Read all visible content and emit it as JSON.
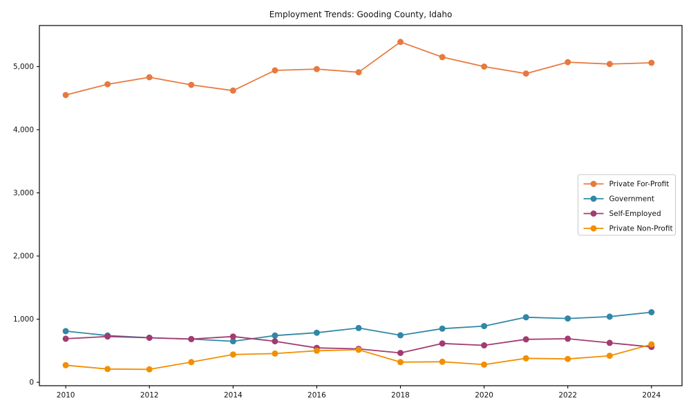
{
  "chart_data": {
    "type": "line",
    "title": "Employment Trends: Gooding County, Idaho",
    "xlabel": "",
    "ylabel": "",
    "x": [
      2010,
      2011,
      2012,
      2013,
      2014,
      2015,
      2016,
      2017,
      2018,
      2019,
      2020,
      2021,
      2022,
      2023,
      2024
    ],
    "series": [
      {
        "name": "Private For-Profit",
        "color": "#E8793E",
        "values": [
          4550,
          4720,
          4830,
          4710,
          4620,
          4940,
          4960,
          4910,
          5390,
          5150,
          5000,
          4890,
          5070,
          5040,
          5060
        ]
      },
      {
        "name": "Government",
        "color": "#3187A5",
        "values": [
          810,
          740,
          705,
          685,
          650,
          740,
          785,
          860,
          745,
          850,
          890,
          1030,
          1010,
          1040,
          1110
        ]
      },
      {
        "name": "Self-Employed",
        "color": "#A23B72",
        "values": [
          690,
          725,
          705,
          685,
          725,
          650,
          545,
          530,
          465,
          615,
          585,
          680,
          690,
          625,
          560
        ]
      },
      {
        "name": "Private Non-Profit",
        "color": "#F18F01",
        "values": [
          270,
          210,
          205,
          320,
          440,
          455,
          500,
          515,
          320,
          325,
          280,
          380,
          370,
          420,
          600
        ]
      }
    ],
    "xticks": [
      2010,
      2012,
      2014,
      2016,
      2018,
      2020,
      2022,
      2024
    ],
    "yticks": [
      0,
      1000,
      2000,
      3000,
      4000,
      5000
    ],
    "xlim": [
      2009.37,
      2024.73
    ],
    "ylim": [
      -54,
      5650
    ],
    "legend_position": "center-right",
    "grid": false,
    "frame_color": "#000000",
    "legend_border_color": "#c8c8c8",
    "background_color": "#ffffff"
  }
}
